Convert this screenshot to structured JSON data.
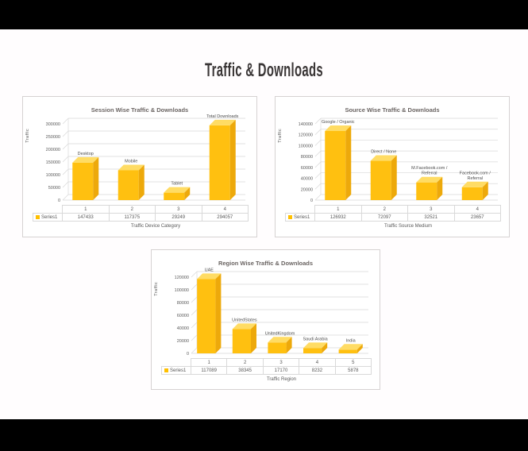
{
  "page": {
    "title": "Traffic & Downloads",
    "background": "#fffdfe",
    "top_bar_color": "#000000",
    "bottom_bar_color": "#000000"
  },
  "colors": {
    "bar_front": "#FFC010",
    "bar_top": "#FFDC64",
    "bar_side": "#EDA90B",
    "grid": "#D9D9D9",
    "axis_text": "#595959",
    "title_text": "#6A6462",
    "label_text": "#4D4D4D",
    "legend_swatch": "#FFC000"
  },
  "chart_data": [
    {
      "type": "bar",
      "title": "Session Wise Traffic & Downloads",
      "xlabel": "Traffic Device Category",
      "ylabel": "Traffic",
      "categories": [
        "1",
        "2",
        "3",
        "4"
      ],
      "bar_labels": [
        "Desktop",
        "Mobile",
        "Tablet",
        "Total Downloads"
      ],
      "series": [
        {
          "name": "Series1",
          "values": [
            147433,
            117375,
            29249,
            294057
          ]
        }
      ],
      "ylim": [
        0,
        300000
      ],
      "y_step": 50000,
      "grid": true,
      "legend_position": "table-left"
    },
    {
      "type": "bar",
      "title": "Source Wise Traffic & Downloads",
      "xlabel": "Traffic Source Medium",
      "ylabel": "Traffic",
      "categories": [
        "1",
        "2",
        "3",
        "4"
      ],
      "bar_labels": [
        "Google / Organic",
        "Direct / None",
        "M.Facebook.com /\nReferral",
        "Facebook.com /\nReferral"
      ],
      "series": [
        {
          "name": "Series1",
          "values": [
            126932,
            72097,
            32521,
            23657
          ]
        }
      ],
      "ylim": [
        0,
        140000
      ],
      "y_step": 20000,
      "grid": true,
      "legend_position": "table-left"
    },
    {
      "type": "bar",
      "title": "Region Wise Traffic & Downloads",
      "xlabel": "Traffic Region",
      "ylabel": "Traffic",
      "categories": [
        "1",
        "2",
        "3",
        "4",
        "5"
      ],
      "bar_labels": [
        "UAE",
        "UnitedStates",
        "UnitedKingdom",
        "Saudi Arabia",
        "India"
      ],
      "series": [
        {
          "name": "Series1",
          "values": [
            117089,
            38345,
            17170,
            8232,
            5878
          ]
        }
      ],
      "ylim": [
        0,
        120000
      ],
      "y_step": 20000,
      "grid": true,
      "legend_position": "table-left"
    }
  ]
}
